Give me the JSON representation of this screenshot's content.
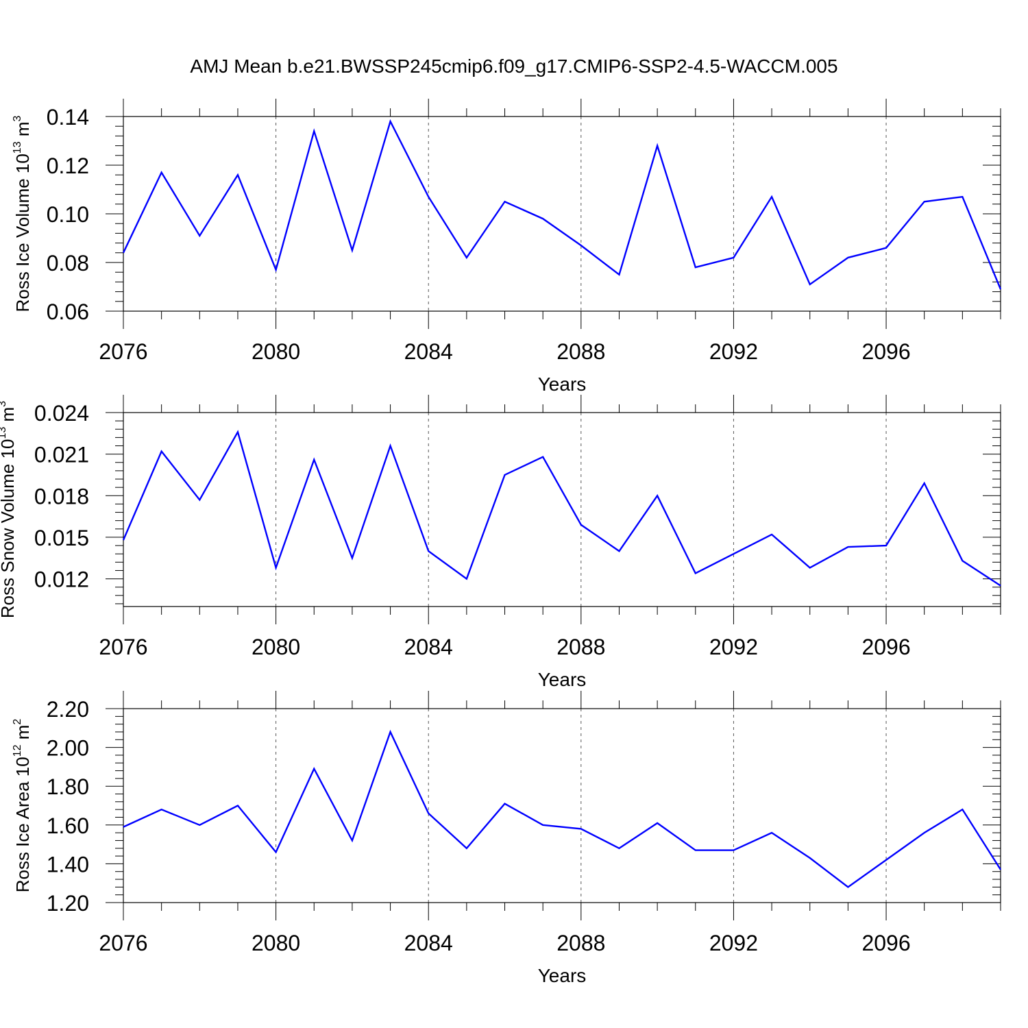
{
  "figure": {
    "title": "AMJ Mean b.e21.BWSSP245cmip6.f09_g17.CMIP6-SSP2-4.5-WACCM.005"
  },
  "chart_data": [
    {
      "type": "line",
      "title": "",
      "xlabel": "Years",
      "ylabel": "Ross Ice Volume 10",
      "ylabel_exp": "13",
      "ylabel_unit": " m",
      "ylabel_unit_exp": "3",
      "xlim": [
        2076,
        2099
      ],
      "ylim": [
        0.06,
        0.14
      ],
      "yticks": [
        "0.06",
        "0.08",
        "0.10",
        "0.12",
        "0.14"
      ],
      "ytick_values": [
        0.06,
        0.08,
        0.1,
        0.12,
        0.14
      ],
      "xticks": [
        "2076",
        "2080",
        "2084",
        "2088",
        "2092",
        "2096"
      ],
      "xtick_values": [
        2076,
        2080,
        2084,
        2088,
        2092,
        2096
      ],
      "grid": "vertical-dashed",
      "line_color": "#0000ff",
      "x": [
        2076,
        2077,
        2078,
        2079,
        2080,
        2081,
        2082,
        2083,
        2084,
        2085,
        2086,
        2087,
        2088,
        2089,
        2090,
        2091,
        2092,
        2093,
        2094,
        2095,
        2096,
        2097,
        2098,
        2099
      ],
      "values": [
        0.084,
        0.117,
        0.091,
        0.116,
        0.077,
        0.134,
        0.085,
        0.138,
        0.107,
        0.082,
        0.105,
        0.098,
        0.087,
        0.075,
        0.128,
        0.078,
        0.082,
        0.107,
        0.071,
        0.082,
        0.086,
        0.105,
        0.107,
        0.069
      ]
    },
    {
      "type": "line",
      "title": "",
      "xlabel": "Years",
      "ylabel": "Ross Snow Volume 10",
      "ylabel_exp": "13",
      "ylabel_unit": " m",
      "ylabel_unit_exp": "3",
      "xlim": [
        2076,
        2099
      ],
      "ylim": [
        0.01,
        0.024
      ],
      "yticks": [
        "0.012",
        "0.015",
        "0.018",
        "0.021",
        "0.024"
      ],
      "ytick_values": [
        0.012,
        0.015,
        0.018,
        0.021,
        0.024
      ],
      "xticks": [
        "2076",
        "2080",
        "2084",
        "2088",
        "2092",
        "2096"
      ],
      "xtick_values": [
        2076,
        2080,
        2084,
        2088,
        2092,
        2096
      ],
      "grid": "vertical-dashed",
      "line_color": "#0000ff",
      "x": [
        2076,
        2077,
        2078,
        2079,
        2080,
        2081,
        2082,
        2083,
        2084,
        2085,
        2086,
        2087,
        2088,
        2089,
        2090,
        2091,
        2092,
        2093,
        2094,
        2095,
        2096,
        2097,
        2098,
        2099
      ],
      "values": [
        0.0148,
        0.0212,
        0.0177,
        0.0226,
        0.0128,
        0.0206,
        0.0135,
        0.0216,
        0.014,
        0.012,
        0.0195,
        0.0208,
        0.0159,
        0.014,
        0.018,
        0.0124,
        0.0138,
        0.0152,
        0.0128,
        0.0143,
        0.0144,
        0.0189,
        0.0133,
        0.0115
      ]
    },
    {
      "type": "line",
      "title": "",
      "xlabel": "Years",
      "ylabel": "Ross Ice Area 10",
      "ylabel_exp": "12",
      "ylabel_unit": " m",
      "ylabel_unit_exp": "2",
      "xlim": [
        2076,
        2099
      ],
      "ylim": [
        1.2,
        2.2
      ],
      "yticks": [
        "1.20",
        "1.40",
        "1.60",
        "1.80",
        "2.00",
        "2.20"
      ],
      "ytick_values": [
        1.2,
        1.4,
        1.6,
        1.8,
        2.0,
        2.2
      ],
      "xticks": [
        "2076",
        "2080",
        "2084",
        "2088",
        "2092",
        "2096"
      ],
      "xtick_values": [
        2076,
        2080,
        2084,
        2088,
        2092,
        2096
      ],
      "grid": "vertical-dashed",
      "line_color": "#0000ff",
      "x": [
        2076,
        2077,
        2078,
        2079,
        2080,
        2081,
        2082,
        2083,
        2084,
        2085,
        2086,
        2087,
        2088,
        2089,
        2090,
        2091,
        2092,
        2093,
        2094,
        2095,
        2096,
        2097,
        2098,
        2099
      ],
      "values": [
        1.59,
        1.68,
        1.6,
        1.7,
        1.46,
        1.89,
        1.52,
        2.08,
        1.66,
        1.48,
        1.71,
        1.6,
        1.58,
        1.48,
        1.61,
        1.47,
        1.47,
        1.56,
        1.43,
        1.28,
        1.42,
        1.56,
        1.68,
        1.37
      ]
    }
  ]
}
